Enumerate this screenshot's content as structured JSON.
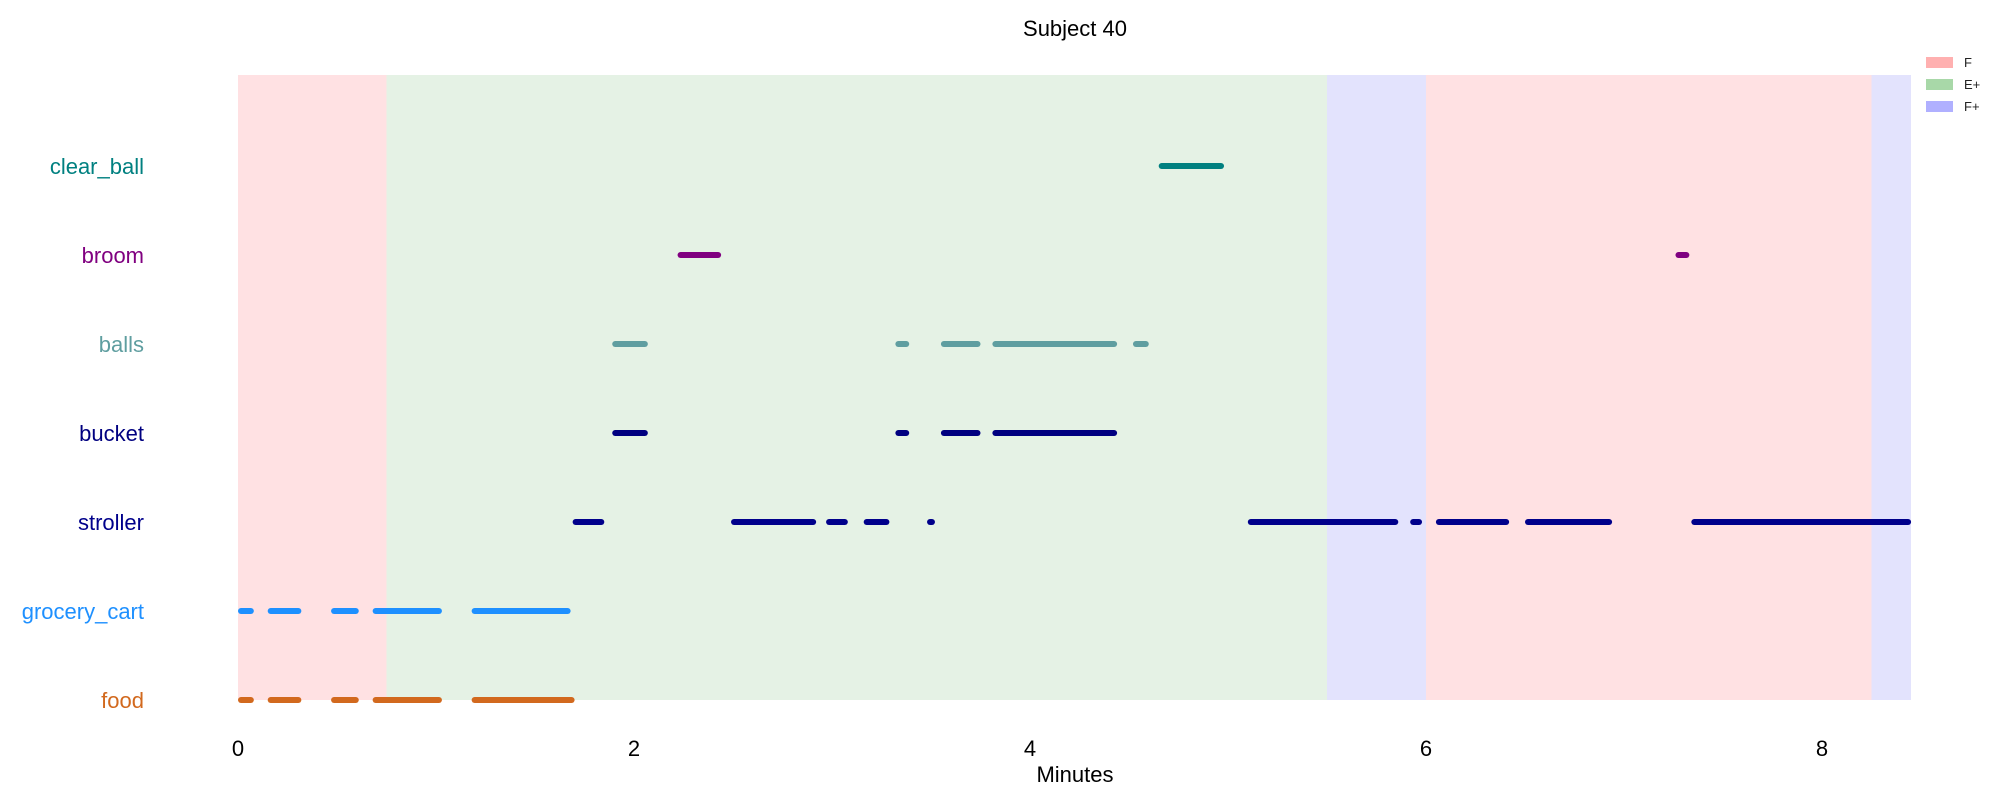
{
  "chart_data": {
    "type": "timeline",
    "title": "Subject 40",
    "xlabel": "Minutes",
    "xlim": [
      0,
      8.45
    ],
    "xticks": [
      0,
      2,
      4,
      6,
      8
    ],
    "grid": false,
    "legend_placement": "top-right",
    "phases": [
      {
        "label": "F",
        "start": 0.0,
        "end": 0.75
      },
      {
        "label": "E+",
        "start": 0.75,
        "end": 5.5
      },
      {
        "label": "F+",
        "start": 5.5,
        "end": 6.0
      },
      {
        "label": "F",
        "start": 6.0,
        "end": 8.25
      },
      {
        "label": "F+",
        "start": 8.25,
        "end": 8.45
      }
    ],
    "legend": [
      {
        "label": "F",
        "color": "#ffb0b0"
      },
      {
        "label": "E+",
        "color": "#a8d8a8"
      },
      {
        "label": "F+",
        "color": "#b0b0ff"
      }
    ],
    "phase_colors": {
      "F": "#ffe1e3",
      "E+": "#e5f2e5",
      "F+": "#e3e3fd"
    },
    "series": [
      {
        "name": "clear_ball",
        "color": "#008080",
        "intervals": [
          [
            4.65,
            4.98
          ]
        ]
      },
      {
        "name": "broom",
        "color": "#800080",
        "intervals": [
          [
            2.22,
            2.44
          ],
          [
            7.26,
            7.33
          ]
        ]
      },
      {
        "name": "balls",
        "color": "#5f9ea0",
        "intervals": [
          [
            1.89,
            2.07
          ],
          [
            3.32,
            3.39
          ],
          [
            3.55,
            3.75
          ],
          [
            3.81,
            4.44
          ],
          [
            4.52,
            4.6
          ]
        ]
      },
      {
        "name": "bucket",
        "color": "#000080",
        "intervals": [
          [
            1.89,
            2.07
          ],
          [
            3.32,
            3.39
          ],
          [
            3.55,
            3.75
          ],
          [
            3.81,
            4.44
          ]
        ]
      },
      {
        "name": "stroller",
        "color": "#00008b",
        "intervals": [
          [
            1.69,
            1.85
          ],
          [
            2.49,
            2.92
          ],
          [
            2.97,
            3.08
          ],
          [
            3.16,
            3.29
          ],
          [
            3.48,
            3.52
          ],
          [
            5.1,
            5.86
          ],
          [
            5.92,
            5.98
          ],
          [
            6.05,
            6.42
          ],
          [
            6.5,
            6.94
          ],
          [
            7.34,
            8.45
          ]
        ]
      },
      {
        "name": "grocery_cart",
        "color": "#1e90ff",
        "intervals": [
          [
            0.0,
            0.08
          ],
          [
            0.15,
            0.32
          ],
          [
            0.47,
            0.61
          ],
          [
            0.68,
            1.03
          ],
          [
            1.18,
            1.68
          ]
        ]
      },
      {
        "name": "food",
        "color": "#d2691e",
        "intervals": [
          [
            0.0,
            0.08
          ],
          [
            0.15,
            0.32
          ],
          [
            0.47,
            0.61
          ],
          [
            0.68,
            1.03
          ],
          [
            1.18,
            1.7
          ]
        ]
      }
    ]
  }
}
